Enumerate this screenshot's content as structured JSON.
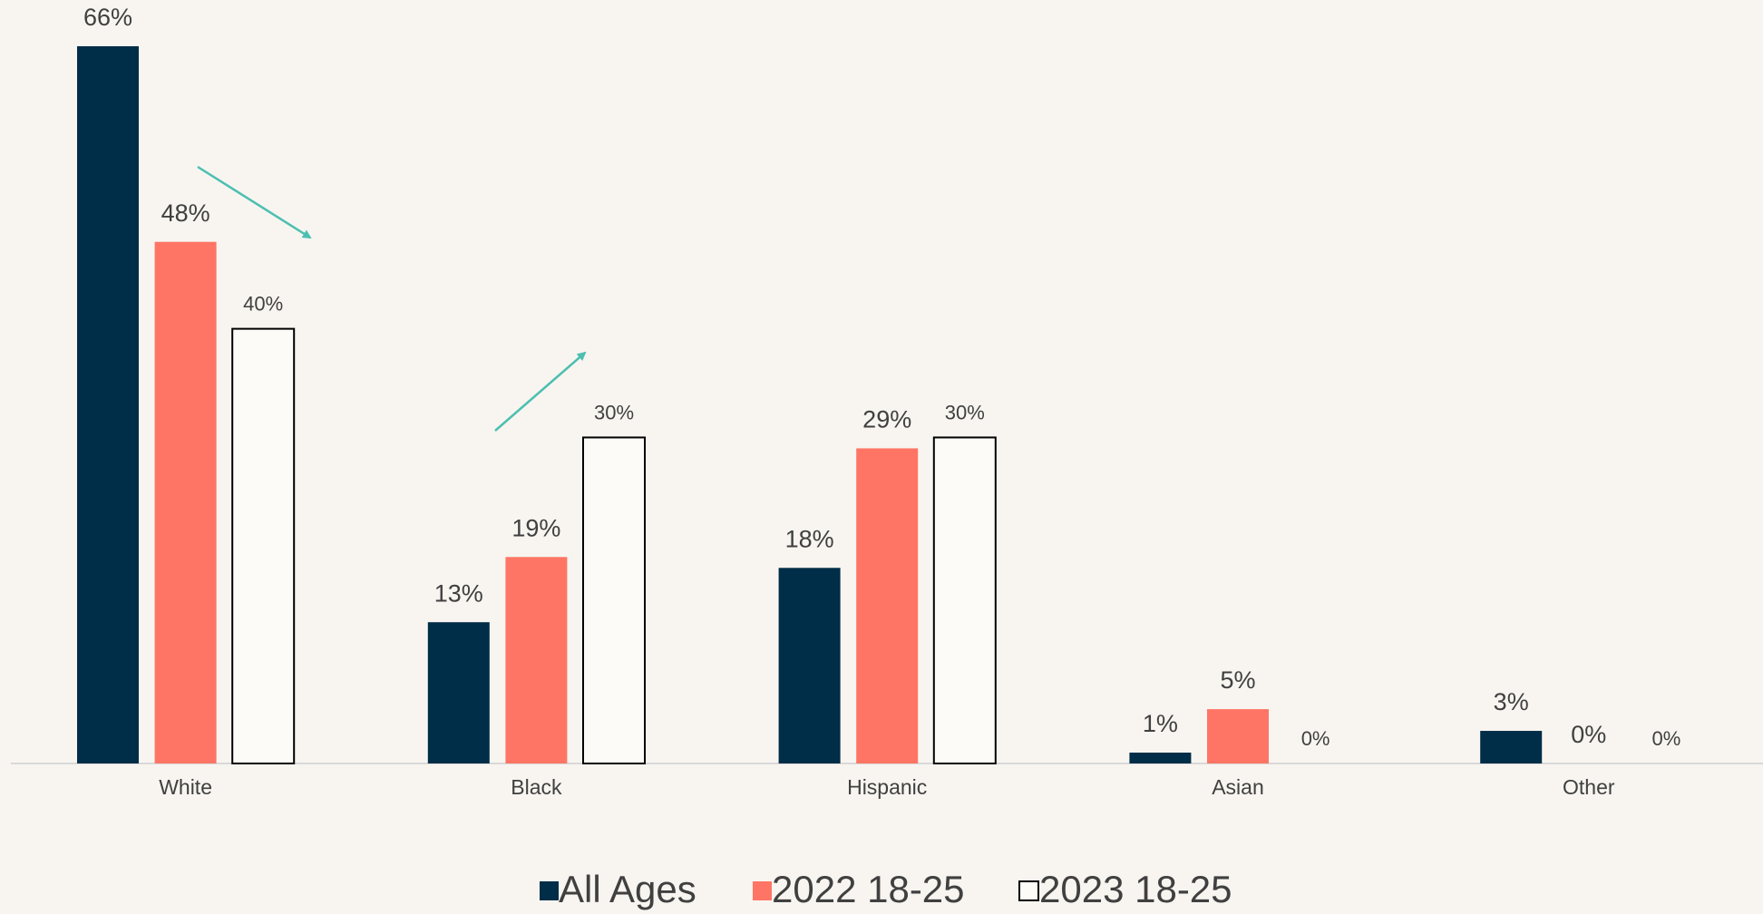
{
  "chart_data": {
    "type": "bar",
    "categories": [
      "White",
      "Black",
      "Hispanic",
      "Asian",
      "Other"
    ],
    "series": [
      {
        "name": "All Ages",
        "color": "#002d47",
        "values": [
          66,
          13,
          18,
          1,
          3
        ],
        "value_labels": [
          "66%",
          "13%",
          "18%",
          "1%",
          "3%"
        ]
      },
      {
        "name": "2022 18-25",
        "color": "#ff7565",
        "values": [
          48,
          19,
          29,
          5,
          0
        ],
        "value_labels": [
          "48%",
          "19%",
          "29%",
          "5%",
          "0%"
        ]
      },
      {
        "name": "2023 18-25",
        "color": "#ffffff",
        "values": [
          40,
          30,
          30,
          0,
          0
        ],
        "value_labels": [
          "40%",
          "30%",
          "30%",
          "0%",
          "0%"
        ]
      }
    ],
    "legend": "bottom"
  }
}
